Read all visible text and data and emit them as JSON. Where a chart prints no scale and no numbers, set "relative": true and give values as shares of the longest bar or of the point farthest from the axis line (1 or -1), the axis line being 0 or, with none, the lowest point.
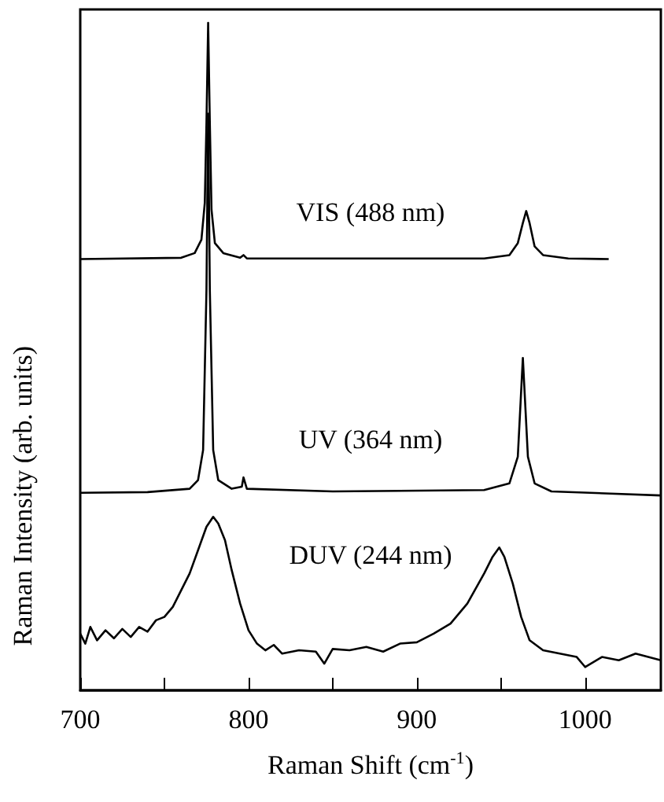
{
  "chart_data": {
    "type": "line",
    "relative": true,
    "xlabel": "Raman Shift (cm$^{-1}$)",
    "ylabel": "Raman Intensity (arb. units)",
    "xlim": [
      700,
      1045
    ],
    "xticks": [
      700,
      {
        "value": 750,
        "label": null
      },
      800,
      {
        "value": 850,
        "label": null
      },
      900,
      {
        "value": 950,
        "label": null
      },
      1000
    ],
    "grid": false,
    "marker": "none",
    "line_style": "solid",
    "series": [
      {
        "name": "VIS (488 nm)",
        "color": "#000000",
        "x": [
          700,
          760,
          768,
          772,
          774,
          775,
          776,
          777,
          778,
          780,
          785,
          795,
          797,
          799,
          940,
          955,
          960,
          963,
          965,
          967,
          970,
          975,
          990,
          1014
        ],
        "values": [
          0.646,
          0.648,
          0.655,
          0.675,
          0.73,
          0.85,
          1.0,
          0.85,
          0.72,
          0.67,
          0.655,
          0.648,
          0.652,
          0.647,
          0.647,
          0.652,
          0.67,
          0.7,
          0.718,
          0.7,
          0.665,
          0.652,
          0.647,
          0.646
        ]
      },
      {
        "name": "UV (364 nm)",
        "color": "#000000",
        "x": [
          700,
          740,
          765,
          770,
          773,
          775,
          776,
          777,
          779,
          782,
          790,
          796,
          797,
          799,
          850,
          940,
          955,
          960,
          963,
          966,
          970,
          980,
          1045
        ],
        "values": [
          0.296,
          0.297,
          0.302,
          0.315,
          0.36,
          0.6,
          0.864,
          0.6,
          0.36,
          0.315,
          0.302,
          0.305,
          0.319,
          0.302,
          0.298,
          0.3,
          0.31,
          0.35,
          0.498,
          0.35,
          0.31,
          0.298,
          0.292
        ]
      },
      {
        "name": "DUV (244 nm)",
        "color": "#000000",
        "x": [
          700,
          703,
          706,
          710,
          715,
          720,
          725,
          730,
          735,
          740,
          745,
          750,
          755,
          760,
          765,
          770,
          775,
          779,
          782,
          786,
          790,
          795,
          800,
          805,
          810,
          815,
          820,
          830,
          840,
          845,
          850,
          860,
          870,
          880,
          890,
          900,
          910,
          920,
          930,
          940,
          945,
          949,
          952,
          957,
          962,
          967,
          975,
          985,
          995,
          1000,
          1010,
          1020,
          1030,
          1045
        ],
        "values": [
          0.085,
          0.07,
          0.095,
          0.075,
          0.09,
          0.078,
          0.092,
          0.08,
          0.095,
          0.088,
          0.105,
          0.11,
          0.125,
          0.15,
          0.175,
          0.21,
          0.245,
          0.26,
          0.25,
          0.225,
          0.18,
          0.13,
          0.09,
          0.07,
          0.06,
          0.068,
          0.055,
          0.06,
          0.058,
          0.04,
          0.062,
          0.06,
          0.065,
          0.058,
          0.07,
          0.072,
          0.085,
          0.1,
          0.13,
          0.175,
          0.2,
          0.214,
          0.2,
          0.16,
          0.11,
          0.075,
          0.06,
          0.055,
          0.05,
          0.035,
          0.05,
          0.045,
          0.055,
          0.045
        ]
      }
    ]
  }
}
